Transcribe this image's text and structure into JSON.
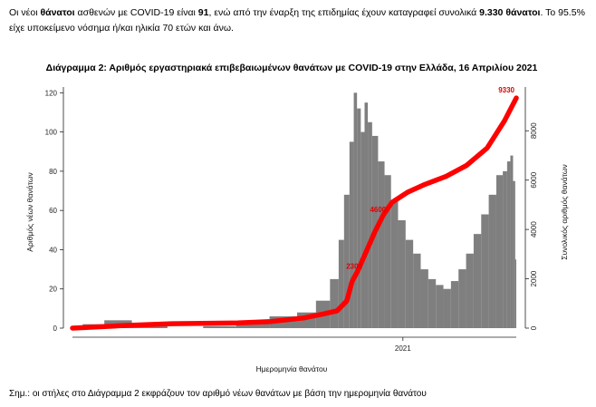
{
  "intro": {
    "p1": "Οι νέοι ",
    "b1": "θάνατοι",
    "p2": " ασθενών με COVID-19 είναι ",
    "b2": "91",
    "p3": ", ενώ από την έναρξη της επιδημίας έχουν καταγραφεί συνολικά ",
    "b3": "9.330 θάνατοι",
    "p4": ". Το 95.5% είχε υποκείμενο νόσημα ή/και ηλικία 70 ετών και άνω."
  },
  "note": "Σημ.: οι στήλες στο Διάγραμμα 2 εκφράζουν τον αριθμό νέων θανάτων με βάση την ημερομηνία θανάτου",
  "chart_data": {
    "type": "bar",
    "title": "Διάγραμμα 2: Αριθμός εργαστηριακά επιβεβαιωμένων θανάτων με COVID-19 στην Ελλάδα, 16 Απριλίου 2021",
    "xlabel": "Ημερομηνία θανάτου",
    "ylabel": "Αριθμός νέων θανάτων",
    "y2label": "Συνολικός αριθμός θανάτων",
    "ylim": [
      0,
      122
    ],
    "y2lim": [
      0,
      9700
    ],
    "yticks": [
      0,
      20,
      40,
      60,
      80,
      100,
      120
    ],
    "y2ticks": [
      0,
      2000,
      4000,
      6000,
      8000
    ],
    "xtick_label": "2021",
    "x_start": "2020-03-01",
    "x_end": "2021-04-16",
    "x_tick_date": "2021-01-01",
    "colors": {
      "bars": "#7f7f7f",
      "cumulative": "#ff0000"
    },
    "series": [
      {
        "role": "daily",
        "points": [
          [
            "2020-03-01",
            0
          ],
          [
            "2020-03-20",
            2
          ],
          [
            "2020-04-10",
            4
          ],
          [
            "2020-05-10",
            1
          ],
          [
            "2020-06-15",
            0
          ],
          [
            "2020-07-15",
            1
          ],
          [
            "2020-08-15",
            3
          ],
          [
            "2020-09-15",
            6
          ],
          [
            "2020-10-05",
            8
          ],
          [
            "2020-10-20",
            14
          ],
          [
            "2020-10-31",
            25
          ],
          [
            "2020-11-05",
            45
          ],
          [
            "2020-11-10",
            68
          ],
          [
            "2020-11-15",
            95
          ],
          [
            "2020-11-18",
            120
          ],
          [
            "2020-11-21",
            112
          ],
          [
            "2020-11-25",
            100
          ],
          [
            "2020-11-28",
            115
          ],
          [
            "2020-12-01",
            105
          ],
          [
            "2020-12-06",
            98
          ],
          [
            "2020-12-12",
            85
          ],
          [
            "2020-12-18",
            78
          ],
          [
            "2020-12-24",
            65
          ],
          [
            "2020-12-31",
            55
          ],
          [
            "2021-01-07",
            45
          ],
          [
            "2021-01-14",
            38
          ],
          [
            "2021-01-21",
            30
          ],
          [
            "2021-01-28",
            25
          ],
          [
            "2021-02-04",
            22
          ],
          [
            "2021-02-11",
            20
          ],
          [
            "2021-02-18",
            24
          ],
          [
            "2021-02-25",
            30
          ],
          [
            "2021-03-04",
            38
          ],
          [
            "2021-03-11",
            48
          ],
          [
            "2021-03-18",
            58
          ],
          [
            "2021-03-25",
            68
          ],
          [
            "2021-04-01",
            78
          ],
          [
            "2021-04-06",
            80
          ],
          [
            "2021-04-09",
            85
          ],
          [
            "2021-04-12",
            88
          ],
          [
            "2021-04-14",
            75
          ],
          [
            "2021-04-16",
            35
          ]
        ]
      },
      {
        "role": "cumulative",
        "points": [
          [
            "2020-03-01",
            0
          ],
          [
            "2020-04-15",
            100
          ],
          [
            "2020-06-01",
            180
          ],
          [
            "2020-08-01",
            210
          ],
          [
            "2020-09-01",
            270
          ],
          [
            "2020-10-01",
            410
          ],
          [
            "2020-10-20",
            580
          ],
          [
            "2020-11-01",
            700
          ],
          [
            "2020-11-10",
            1100
          ],
          [
            "2020-11-15",
            1900
          ],
          [
            "2020-11-20",
            2300
          ],
          [
            "2020-11-27",
            3000
          ],
          [
            "2020-12-06",
            3900
          ],
          [
            "2020-12-14",
            4600
          ],
          [
            "2020-12-22",
            5100
          ],
          [
            "2021-01-05",
            5500
          ],
          [
            "2021-01-20",
            5800
          ],
          [
            "2021-02-10",
            6150
          ],
          [
            "2021-03-01",
            6600
          ],
          [
            "2021-03-20",
            7300
          ],
          [
            "2021-04-05",
            8400
          ],
          [
            "2021-04-16",
            9330
          ]
        ]
      }
    ],
    "annotations": [
      {
        "date": "2020-11-22",
        "y2": 2300,
        "text": "2300"
      },
      {
        "date": "2020-12-14",
        "y2": 4600,
        "text": "4600"
      },
      {
        "date": "2021-04-16",
        "y2": 9330,
        "text": "9330"
      }
    ]
  }
}
